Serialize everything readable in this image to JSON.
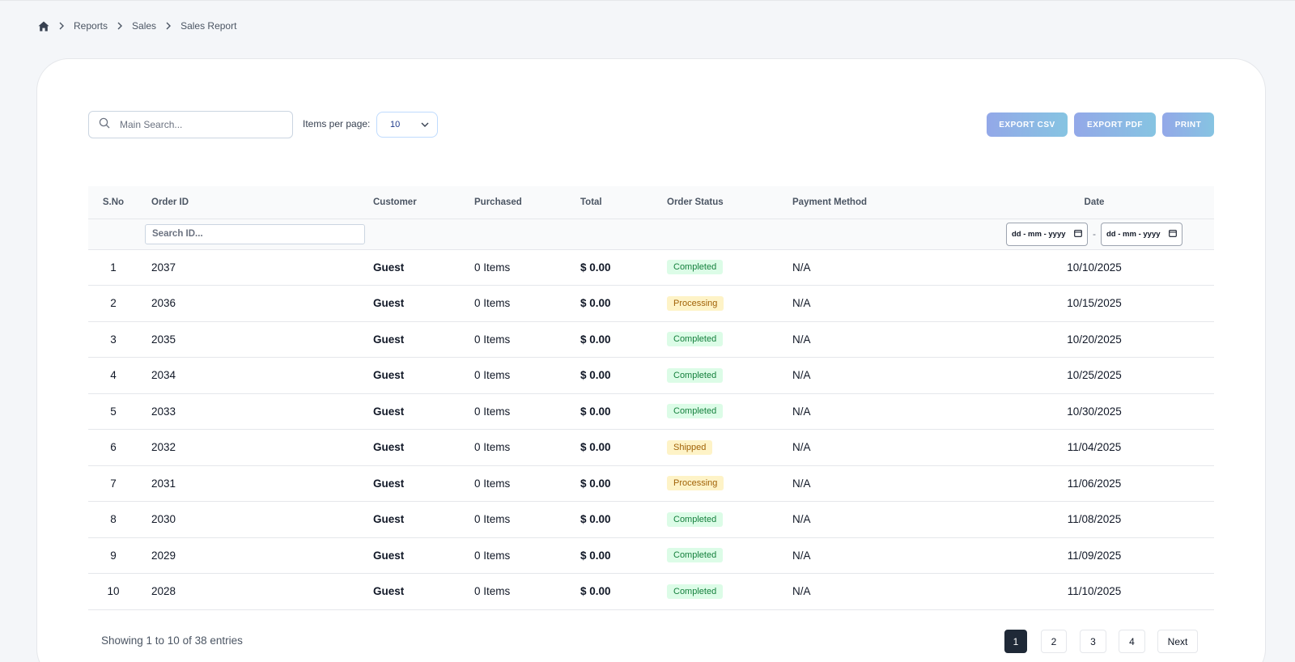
{
  "breadcrumb": {
    "items": [
      "Reports",
      "Sales",
      "Sales Report"
    ]
  },
  "toolbar": {
    "search_placeholder": "Main Search...",
    "items_per_page_label": "Items per page:",
    "items_per_page_value": "10",
    "export_csv": "EXPORT CSV",
    "export_pdf": "EXPORT PDF",
    "print": "PRINT"
  },
  "table": {
    "columns": [
      "S.No",
      "Order ID",
      "Customer",
      "Purchased",
      "Total",
      "Order Status",
      "Payment Method",
      "Date"
    ],
    "filters": {
      "id_placeholder": "Search ID...",
      "date_from": "dd - mm - yyyy",
      "date_to": "dd - mm - yyyy",
      "date_separator": "-"
    },
    "rows": [
      {
        "sno": "1",
        "id": "2037",
        "customer": "Guest",
        "purchased": "0 Items",
        "total": "$ 0.00",
        "status": "Completed",
        "payment": "N/A",
        "date": "10/10/2025"
      },
      {
        "sno": "2",
        "id": "2036",
        "customer": "Guest",
        "purchased": "0 Items",
        "total": "$ 0.00",
        "status": "Processing",
        "payment": "N/A",
        "date": "10/15/2025"
      },
      {
        "sno": "3",
        "id": "2035",
        "customer": "Guest",
        "purchased": "0 Items",
        "total": "$ 0.00",
        "status": "Completed",
        "payment": "N/A",
        "date": "10/20/2025"
      },
      {
        "sno": "4",
        "id": "2034",
        "customer": "Guest",
        "purchased": "0 Items",
        "total": "$ 0.00",
        "status": "Completed",
        "payment": "N/A",
        "date": "10/25/2025"
      },
      {
        "sno": "5",
        "id": "2033",
        "customer": "Guest",
        "purchased": "0 Items",
        "total": "$ 0.00",
        "status": "Completed",
        "payment": "N/A",
        "date": "10/30/2025"
      },
      {
        "sno": "6",
        "id": "2032",
        "customer": "Guest",
        "purchased": "0 Items",
        "total": "$ 0.00",
        "status": "Shipped",
        "payment": "N/A",
        "date": "11/04/2025"
      },
      {
        "sno": "7",
        "id": "2031",
        "customer": "Guest",
        "purchased": "0 Items",
        "total": "$ 0.00",
        "status": "Processing",
        "payment": "N/A",
        "date": "11/06/2025"
      },
      {
        "sno": "8",
        "id": "2030",
        "customer": "Guest",
        "purchased": "0 Items",
        "total": "$ 0.00",
        "status": "Completed",
        "payment": "N/A",
        "date": "11/08/2025"
      },
      {
        "sno": "9",
        "id": "2029",
        "customer": "Guest",
        "purchased": "0 Items",
        "total": "$ 0.00",
        "status": "Completed",
        "payment": "N/A",
        "date": "11/09/2025"
      },
      {
        "sno": "10",
        "id": "2028",
        "customer": "Guest",
        "purchased": "0 Items",
        "total": "$ 0.00",
        "status": "Completed",
        "payment": "N/A",
        "date": "11/10/2025"
      }
    ]
  },
  "footer": {
    "showing": "Showing 1 to 10 of 38 entries",
    "pages": [
      "1",
      "2",
      "3",
      "4"
    ],
    "active_page": "1",
    "next": "Next"
  },
  "colors": {
    "background": "#f4f6f9",
    "card": "#ffffff",
    "completed_bg": "#dcfce7",
    "completed_text": "#15803d",
    "processing_bg": "#fef3c7",
    "processing_text": "#a16207",
    "active_page": "#1f2937"
  }
}
